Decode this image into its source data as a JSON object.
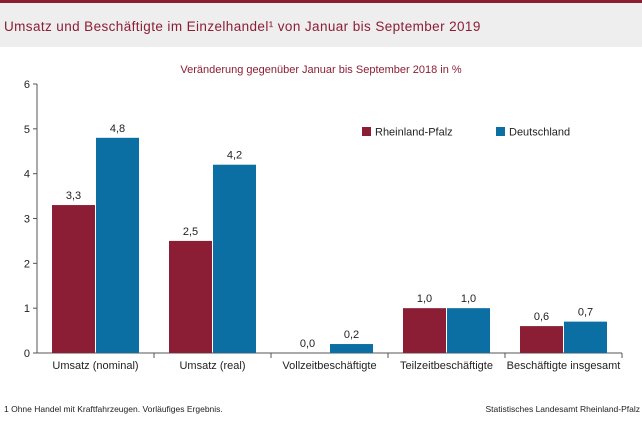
{
  "header": {
    "title": "Umsatz und Beschäftigte im Einzelhandel¹ von Januar bis September 2019"
  },
  "colors": {
    "accent": "#8b1e35",
    "rheinland_pfalz": "#8b1e35",
    "deutschland": "#0b6fa4",
    "header_bg": "#eeeeee"
  },
  "footer": {
    "footnote": "1 Ohne Handel mit Kraftfahrzeugen. Vorläufiges Ergebnis.",
    "source": "Statistisches Landesamt Rheinland-Pfalz"
  },
  "chart_data": {
    "type": "bar",
    "title": "",
    "subtitle": "Veränderung gegenüber Januar bis September 2018 in %",
    "categories": [
      "Umsatz (nominal)",
      "Umsatz (real)",
      "Vollzeitbeschäftigte",
      "Teilzeitbeschäftigte",
      "Beschäftigte insgesamt"
    ],
    "series": [
      {
        "name": "Rheinland-Pfalz",
        "values": [
          3.3,
          2.5,
          0.0,
          1.0,
          0.6
        ],
        "labels": [
          "3,3",
          "2,5",
          "0,0",
          "1,0",
          "0,6"
        ],
        "color": "#8b1e35"
      },
      {
        "name": "Deutschland",
        "values": [
          4.8,
          4.2,
          0.2,
          1.0,
          0.7
        ],
        "labels": [
          "4,8",
          "4,2",
          "0,2",
          "1,0",
          "0,7"
        ],
        "color": "#0b6fa4"
      }
    ],
    "yticks": [
      "0",
      "1",
      "2",
      "3",
      "4",
      "5",
      "6"
    ],
    "ylim": [
      0,
      6
    ],
    "grid": false,
    "legend": "top-right",
    "xlabel": "",
    "ylabel": ""
  }
}
